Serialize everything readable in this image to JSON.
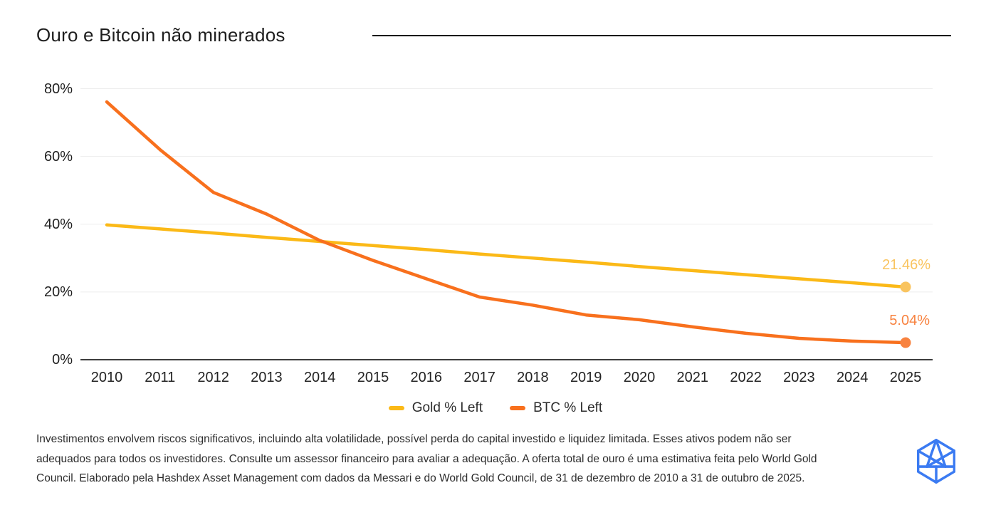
{
  "header": {
    "title": "Ouro e Bitcoin não minerados"
  },
  "chart_data": {
    "type": "line",
    "title": "Ouro e Bitcoin não minerados",
    "x": [
      2010,
      2011,
      2012,
      2013,
      2014,
      2015,
      2016,
      2017,
      2018,
      2019,
      2020,
      2021,
      2022,
      2023,
      2024,
      2025
    ],
    "series": [
      {
        "name": "Gold % Left",
        "color": "#FBB917",
        "accent": "#F9C45F",
        "values": [
          39.8,
          38.6,
          37.4,
          36.1,
          34.9,
          33.7,
          32.5,
          31.2,
          30.0,
          28.8,
          27.5,
          26.3,
          25.1,
          23.9,
          22.7,
          21.46
        ],
        "end_label": "21.46%"
      },
      {
        "name": "BTC % Left",
        "color": "#F8701D",
        "accent": "#F8823F",
        "values": [
          76.1,
          62.0,
          49.4,
          43.0,
          35.2,
          29.3,
          23.9,
          18.5,
          16.1,
          13.2,
          11.8,
          9.7,
          7.8,
          6.3,
          5.5,
          5.04
        ],
        "end_label": "5.04%"
      }
    ],
    "y_ticks": [
      0,
      20,
      40,
      60,
      80
    ],
    "y_tick_suffix": "%",
    "ylim": [
      0,
      80
    ],
    "grid": "horizontal",
    "legend_position": "bottom",
    "axis_color": "#3D3D3D",
    "grid_color": "#EDEDED"
  },
  "footer": {
    "lines": [
      "Investimentos envolvem riscos significativos, incluindo alta volatilidade, possível perda do capital investido e liquidez limitada. Esses ativos podem não ser",
      "adequados para todos os investidores. Consulte um assessor financeiro para avaliar a adequação. A oferta total de ouro é uma estimativa feita pelo World Gold",
      "Council. Elaborado pela Hashdex Asset Management com dados da Messari e do World Gold Council, de 31 de dezembro de 2010 a 31 de outubro de 2025."
    ]
  },
  "logo": {
    "name": "hashdex-logo",
    "color": "#3B7BF2"
  }
}
